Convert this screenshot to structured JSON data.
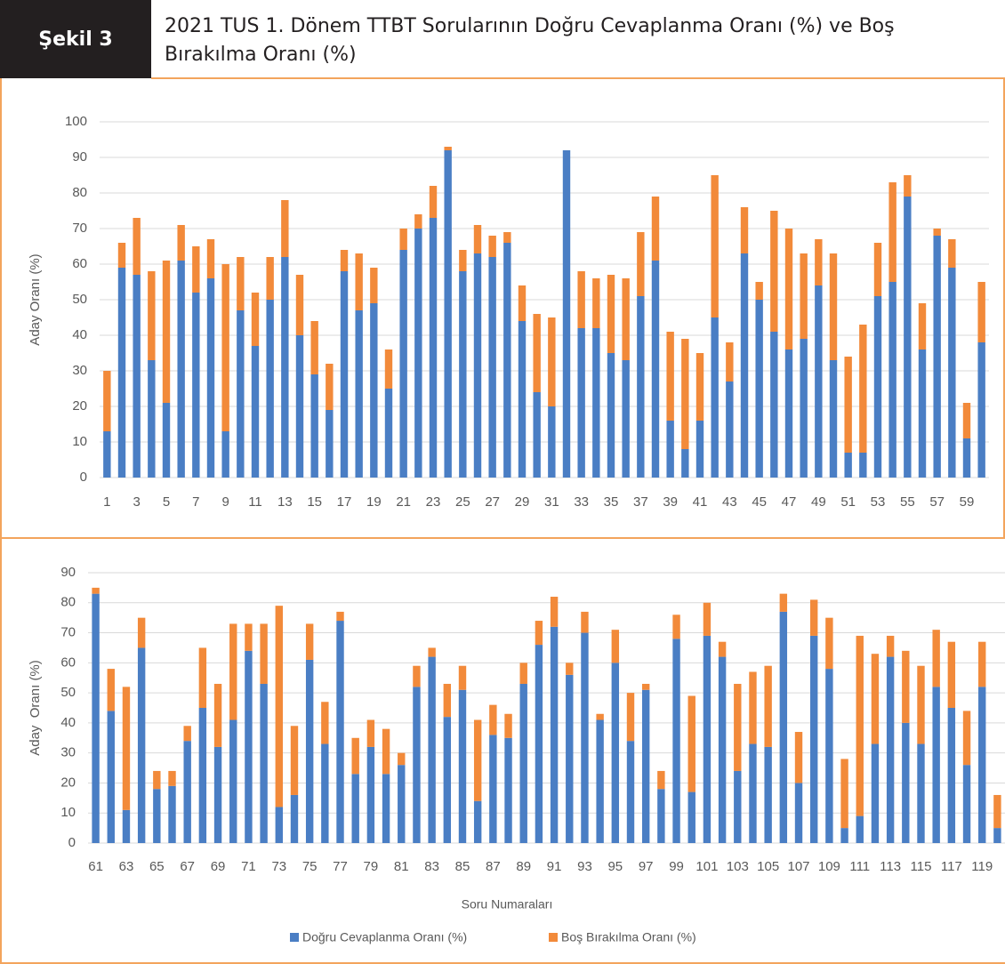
{
  "header": {
    "figure_label": "Şekil 3",
    "title": "2021 TUS 1. Dönem TTBT Sorularının Doğru Cevaplanma Oranı (%) ve Boş Bırakılma Oranı (%)"
  },
  "chart_data": [
    {
      "type": "stacked_bar",
      "y_label": "Aday Oranı (%)",
      "categories": [
        1,
        null,
        3,
        null,
        5,
        null,
        7,
        null,
        9,
        null,
        11,
        null,
        13,
        null,
        15,
        null,
        17,
        null,
        19,
        null,
        21,
        null,
        23,
        null,
        25,
        null,
        27,
        null,
        29,
        null,
        31,
        null,
        33,
        null,
        35,
        null,
        37,
        null,
        39,
        null,
        41,
        null,
        43,
        null,
        45,
        null,
        47,
        null,
        49,
        null,
        51,
        null,
        53,
        null,
        55,
        null,
        57,
        null,
        59,
        null
      ],
      "series": [
        {
          "color": "#4a7ec4",
          "values": [
            13,
            59,
            57,
            33,
            21,
            61,
            52,
            56,
            13,
            47,
            37,
            50,
            62,
            40,
            29,
            19,
            58,
            47,
            49,
            25,
            64,
            70,
            73,
            92,
            58,
            63,
            62,
            66,
            44,
            24,
            20,
            92,
            42,
            42,
            35,
            33,
            51,
            61,
            16,
            8,
            16,
            45,
            27,
            63,
            50,
            41,
            36,
            39,
            54,
            33,
            7,
            7,
            51,
            55,
            79,
            36,
            68,
            59,
            11,
            38
          ]
        },
        {
          "color": "#f28a3a",
          "values": [
            17,
            7,
            16,
            25,
            40,
            10,
            13,
            11,
            47,
            15,
            15,
            12,
            16,
            17,
            15,
            13,
            6,
            16,
            10,
            11,
            6,
            4,
            9,
            1,
            6,
            8,
            6,
            3,
            10,
            22,
            25,
            0,
            16,
            14,
            22,
            23,
            18,
            18,
            25,
            31,
            19,
            40,
            11,
            13,
            5,
            34,
            34,
            24,
            13,
            30,
            27,
            36,
            15,
            28,
            6,
            13,
            2,
            8,
            10,
            17
          ]
        }
      ],
      "ylim": [
        0,
        100
      ],
      "yticks": [
        0,
        10,
        20,
        30,
        40,
        50,
        60,
        70,
        80,
        90,
        100
      ],
      "grid": true
    },
    {
      "type": "stacked_bar",
      "y_label": "Aday  Oranı (%)",
      "x_label": "Soru Numaraları",
      "categories": [
        61,
        null,
        63,
        null,
        65,
        null,
        67,
        null,
        69,
        null,
        71,
        null,
        73,
        null,
        75,
        null,
        77,
        null,
        79,
        null,
        81,
        null,
        83,
        null,
        85,
        null,
        87,
        null,
        89,
        null,
        91,
        null,
        93,
        null,
        95,
        null,
        97,
        null,
        99,
        null,
        101,
        null,
        103,
        null,
        105,
        null,
        107,
        null,
        109,
        null,
        111,
        null,
        113,
        null,
        115,
        null,
        117,
        null,
        119,
        null
      ],
      "series": [
        {
          "name": "Doğru Cevaplanma Oranı (%)",
          "color": "#4a7ec4",
          "values": [
            83,
            44,
            11,
            65,
            18,
            19,
            34,
            45,
            32,
            41,
            64,
            53,
            12,
            16,
            61,
            33,
            74,
            23,
            32,
            23,
            26,
            52,
            62,
            42,
            51,
            14,
            36,
            35,
            53,
            66,
            72,
            56,
            70,
            41,
            60,
            34,
            51,
            18,
            68,
            17,
            69,
            62,
            24,
            33,
            32,
            77,
            20,
            69,
            58,
            5,
            9,
            33,
            62,
            40,
            33,
            52,
            45,
            26,
            52,
            5
          ]
        },
        {
          "name": "Boş Bırakılma Oranı (%)",
          "color": "#f28a3a",
          "values": [
            2,
            14,
            41,
            10,
            6,
            5,
            5,
            20,
            21,
            32,
            9,
            20,
            67,
            23,
            12,
            14,
            3,
            12,
            9,
            15,
            4,
            7,
            3,
            11,
            8,
            27,
            10,
            8,
            7,
            8,
            10,
            4,
            7,
            2,
            11,
            16,
            2,
            6,
            8,
            32,
            11,
            5,
            29,
            24,
            27,
            6,
            17,
            12,
            17,
            23,
            60,
            30,
            7,
            24,
            26,
            19,
            22,
            18,
            15,
            11
          ]
        }
      ],
      "ylim": [
        0,
        90
      ],
      "yticks": [
        0,
        10,
        20,
        30,
        40,
        50,
        60,
        70,
        80,
        90
      ],
      "grid": true,
      "legend": "bottom"
    }
  ]
}
